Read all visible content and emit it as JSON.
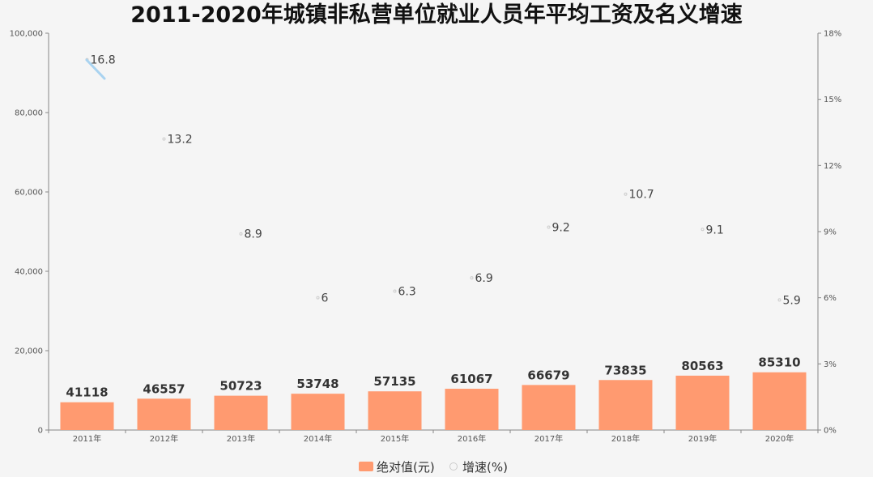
{
  "chart_data": {
    "type": "bar",
    "title": "2011-2020年城镇非私营单位就业人员年平均工资及名义增速",
    "categories": [
      "2011年",
      "2012年",
      "2013年",
      "2014年",
      "2015年",
      "2016年",
      "2017年",
      "2018年",
      "2019年",
      "2020年"
    ],
    "series": [
      {
        "name": "绝对值(元)",
        "type": "bar",
        "axis": "left",
        "color": "#ff9a70",
        "values": [
          41118,
          46557,
          50723,
          53748,
          57135,
          61067,
          66679,
          73835,
          80563,
          85310
        ],
        "display_values": [
          7000,
          7900,
          8650,
          9150,
          9750,
          10400,
          11350,
          12600,
          13700,
          14550
        ]
      },
      {
        "name": "增速(%)",
        "type": "scatter",
        "axis": "right",
        "color": "#cccccc",
        "values": [
          16.8,
          13.2,
          8.9,
          6,
          6.3,
          6.9,
          9.2,
          10.7,
          9.1,
          5.9
        ]
      }
    ],
    "left_axis": {
      "min": 0,
      "max": 100000,
      "ticks": [
        "0",
        "20,000",
        "40,000",
        "60,000",
        "80,000",
        "100,000"
      ]
    },
    "right_axis": {
      "min": 0,
      "max": 18,
      "ticks": [
        "0%",
        "3%",
        "6%",
        "9%",
        "12%",
        "15%",
        "18%"
      ]
    },
    "legend_position": "bottom",
    "grid": false
  }
}
